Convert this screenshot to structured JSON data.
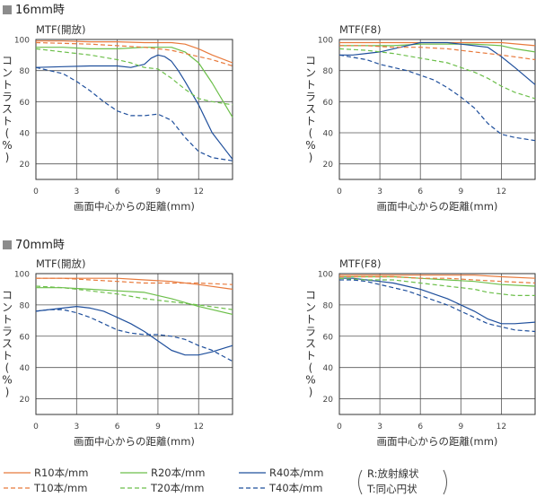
{
  "sections": [
    {
      "title": "16mm時"
    },
    {
      "title": "70mm時"
    }
  ],
  "legend": {
    "items": [
      {
        "label": "R10本/mm",
        "color": "#e87a3c",
        "dash": false
      },
      {
        "label": "R20本/mm",
        "color": "#6cbf4a",
        "dash": false
      },
      {
        "label": "R40本/mm",
        "color": "#1f4f9c",
        "dash": false
      },
      {
        "label": "T10本/mm",
        "color": "#e87a3c",
        "dash": true
      },
      {
        "label": "T20本/mm",
        "color": "#6cbf4a",
        "dash": true
      },
      {
        "label": "T40本/mm",
        "color": "#1f4f9c",
        "dash": true
      }
    ],
    "note_r": "R:放射線状",
    "note_t": "T:同心円状"
  },
  "chart_data": [
    {
      "type": "line",
      "title": "MTF(開放)",
      "xlabel": "画面中心からの距離(mm)",
      "ylabel": "コントラスト(%)",
      "xlim": [
        0,
        14.5
      ],
      "ylim": [
        10,
        100
      ],
      "xticks": [
        0,
        3,
        6,
        9,
        12
      ],
      "yticks": [
        20,
        40,
        60,
        80,
        100
      ],
      "series": [
        {
          "name": "R10本/mm",
          "x": [
            0,
            2,
            4,
            6,
            8,
            10,
            11,
            12,
            13,
            14.5
          ],
          "y": [
            99,
            99,
            98.5,
            98.5,
            98,
            98,
            97,
            94,
            90,
            85
          ]
        },
        {
          "name": "R20本/mm",
          "x": [
            0,
            2,
            4,
            6,
            8,
            9,
            10,
            11,
            12,
            13,
            14.5
          ],
          "y": [
            95,
            95,
            94,
            94,
            95,
            95,
            95,
            92,
            85,
            72,
            50
          ]
        },
        {
          "name": "R40本/mm",
          "x": [
            0,
            2,
            4,
            6,
            7,
            8,
            8.5,
            9,
            9.5,
            10,
            10.5,
            11,
            12,
            13,
            14.5
          ],
          "y": [
            82,
            82.5,
            83,
            83,
            82,
            84,
            88,
            90,
            89,
            86,
            80,
            73,
            58,
            40,
            23
          ]
        },
        {
          "name": "T10本/mm",
          "x": [
            0,
            2,
            4,
            6,
            8,
            10,
            11,
            12,
            13,
            14.5
          ],
          "y": [
            98,
            97.5,
            97,
            96,
            95,
            93,
            91,
            89,
            87,
            83
          ]
        },
        {
          "name": "T20本/mm",
          "x": [
            0,
            2,
            4,
            6,
            7,
            8,
            9,
            10,
            11,
            12,
            13,
            14.5
          ],
          "y": [
            94,
            92,
            90,
            87,
            85,
            82,
            81,
            75,
            68,
            62,
            60,
            58
          ]
        },
        {
          "name": "T40本/mm",
          "x": [
            0,
            2,
            3,
            4,
            5,
            6,
            7,
            8,
            9,
            10,
            11,
            12,
            13,
            14.5
          ],
          "y": [
            82,
            78,
            73,
            67,
            60,
            54,
            51,
            51,
            52,
            48,
            37,
            28,
            24,
            22
          ]
        }
      ]
    },
    {
      "type": "line",
      "title": "MTF(F8)",
      "xlabel": "画面中心からの距離(mm)",
      "ylabel": "コントラスト(%)",
      "xlim": [
        0,
        14.5
      ],
      "ylim": [
        10,
        100
      ],
      "xticks": [
        0,
        3,
        6,
        9,
        12
      ],
      "yticks": [
        20,
        40,
        60,
        80,
        100
      ],
      "series": [
        {
          "name": "R10本/mm",
          "x": [
            0,
            2,
            4,
            6,
            8,
            10,
            12,
            14.5
          ],
          "y": [
            98,
            98,
            98,
            98,
            98,
            98,
            98,
            96
          ]
        },
        {
          "name": "R20本/mm",
          "x": [
            0,
            2,
            4,
            6,
            8,
            10,
            12,
            13,
            14.5
          ],
          "y": [
            96,
            96,
            96,
            97,
            97,
            97,
            96,
            94,
            92
          ]
        },
        {
          "name": "R40本/mm",
          "x": [
            0,
            1,
            2,
            3,
            4,
            5,
            6,
            7,
            8,
            9,
            10,
            11,
            12,
            13,
            14.5
          ],
          "y": [
            90,
            90,
            91,
            92,
            94,
            96,
            98,
            98,
            98,
            97,
            96,
            95,
            89,
            82,
            71
          ]
        },
        {
          "name": "T10本/mm",
          "x": [
            0,
            2,
            4,
            6,
            8,
            10,
            12,
            14.5
          ],
          "y": [
            96,
            96,
            95,
            95,
            94,
            92,
            90,
            87
          ]
        },
        {
          "name": "T20本/mm",
          "x": [
            0,
            2,
            4,
            6,
            8,
            9,
            10,
            11,
            12,
            13,
            14.5
          ],
          "y": [
            94,
            93,
            91,
            88,
            85,
            82,
            79,
            75,
            70,
            66,
            62
          ]
        },
        {
          "name": "T40本/mm",
          "x": [
            0,
            2,
            3,
            4,
            5,
            6,
            7,
            8,
            9,
            10,
            11,
            12,
            13,
            14.5
          ],
          "y": [
            90,
            87,
            84,
            82,
            80,
            77,
            74,
            69,
            63,
            56,
            46,
            39,
            37,
            35
          ]
        }
      ]
    },
    {
      "type": "line",
      "title": "MTF(開放)",
      "xlabel": "画面中心からの距離(mm)",
      "ylabel": "コントラスト(%)",
      "xlim": [
        0,
        14.5
      ],
      "ylim": [
        10,
        100
      ],
      "xticks": [
        0,
        3,
        6,
        9,
        12
      ],
      "yticks": [
        20,
        40,
        60,
        80,
        100
      ],
      "series": [
        {
          "name": "R10本/mm",
          "x": [
            0,
            2,
            4,
            6,
            8,
            10,
            12,
            14.5
          ],
          "y": [
            97,
            97,
            97,
            97,
            96,
            95,
            93,
            90
          ]
        },
        {
          "name": "R20本/mm",
          "x": [
            0,
            2,
            4,
            6,
            8,
            9,
            10,
            12,
            14.5
          ],
          "y": [
            91,
            91,
            90,
            89,
            88,
            86,
            84,
            79,
            74
          ]
        },
        {
          "name": "R40本/mm",
          "x": [
            0,
            1,
            2,
            3,
            4,
            5,
            6,
            7,
            8,
            9,
            10,
            11,
            12,
            13,
            14.5
          ],
          "y": [
            76,
            77,
            78,
            79,
            78,
            76,
            72,
            68,
            63,
            57,
            51,
            48,
            48,
            50,
            54
          ]
        },
        {
          "name": "T10本/mm",
          "x": [
            0,
            2,
            4,
            6,
            8,
            10,
            12,
            14.5
          ],
          "y": [
            97,
            97,
            96,
            95,
            94,
            94,
            94,
            93
          ]
        },
        {
          "name": "T20本/mm",
          "x": [
            0,
            2,
            4,
            6,
            8,
            10,
            12,
            14.5
          ],
          "y": [
            92,
            91,
            89,
            87,
            84,
            82,
            80,
            77
          ]
        },
        {
          "name": "T40本/mm",
          "x": [
            0,
            1,
            2,
            3,
            4,
            5,
            6,
            7,
            8,
            9,
            10,
            11,
            12,
            13,
            14.5
          ],
          "y": [
            76,
            77,
            77,
            75,
            72,
            68,
            64,
            62,
            61,
            61,
            60,
            58,
            54,
            51,
            44
          ]
        }
      ]
    },
    {
      "type": "line",
      "title": "MTF(F8)",
      "xlabel": "画面中心からの距離(mm)",
      "ylabel": "コントラスト(%)",
      "xlim": [
        0,
        14.5
      ],
      "ylim": [
        10,
        100
      ],
      "xticks": [
        0,
        3,
        6,
        9,
        12
      ],
      "yticks": [
        20,
        40,
        60,
        80,
        100
      ],
      "series": [
        {
          "name": "R10本/mm",
          "x": [
            0,
            2,
            4,
            6,
            8,
            10,
            12,
            14.5
          ],
          "y": [
            99,
            99,
            99,
            99,
            99,
            99,
            98,
            97
          ]
        },
        {
          "name": "R20本/mm",
          "x": [
            0,
            2,
            4,
            6,
            8,
            10,
            12,
            14.5
          ],
          "y": [
            98,
            98,
            98,
            97,
            96,
            95,
            93,
            92
          ]
        },
        {
          "name": "R40本/mm",
          "x": [
            0,
            1,
            2,
            3,
            4,
            5,
            6,
            7,
            8,
            9,
            10,
            11,
            12,
            13,
            14.5
          ],
          "y": [
            97,
            97,
            96,
            95,
            94,
            92,
            90,
            87,
            84,
            80,
            76,
            71,
            68,
            68,
            69
          ]
        },
        {
          "name": "T10本/mm",
          "x": [
            0,
            2,
            4,
            6,
            8,
            10,
            12,
            14.5
          ],
          "y": [
            98,
            98,
            98,
            97,
            97,
            96,
            95,
            94
          ]
        },
        {
          "name": "T20本/mm",
          "x": [
            0,
            2,
            4,
            6,
            8,
            10,
            11,
            12,
            13,
            14.5
          ],
          "y": [
            97,
            96,
            96,
            94,
            92,
            90,
            88,
            87,
            86,
            86
          ]
        },
        {
          "name": "T40本/mm",
          "x": [
            0,
            1,
            2,
            3,
            4,
            5,
            6,
            7,
            8,
            9,
            10,
            11,
            12,
            13,
            14.5
          ],
          "y": [
            96,
            96,
            95,
            93,
            91,
            89,
            86,
            83,
            80,
            76,
            72,
            68,
            66,
            64,
            63
          ]
        }
      ]
    }
  ]
}
